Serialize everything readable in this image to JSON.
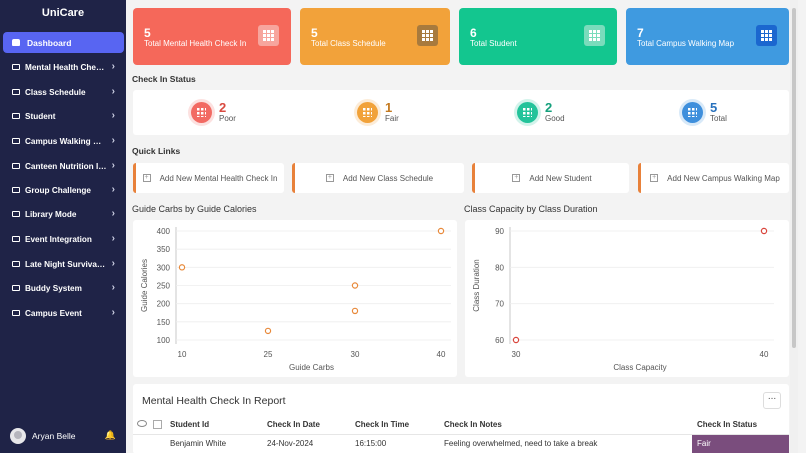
{
  "app": {
    "title": "UniCare"
  },
  "sidebar": {
    "active": "Dashboard",
    "items": [
      "Mental Health Check In",
      "Class Schedule",
      "Student",
      "Campus Walking Map",
      "Canteen Nutrition Info",
      "Group Challenge",
      "Library Mode",
      "Event Integration",
      "Late Night Survival Kit",
      "Buddy System",
      "Campus Event"
    ]
  },
  "user": {
    "name": "Aryan Belle"
  },
  "cards": [
    {
      "num": "5",
      "label": "Total Mental Health Check In",
      "color": "#f5685a",
      "sq": "#f7a59d"
    },
    {
      "num": "5",
      "label": "Total Class Schedule",
      "color": "#f2a23a",
      "sq": "#a87a3d"
    },
    {
      "num": "6",
      "label": "Total Student",
      "color": "#13c68f",
      "sq": "#7adcbc"
    },
    {
      "num": "7",
      "label": "Total Campus Walking Map",
      "color": "#3f9ae0",
      "sq": "#1b67cf"
    }
  ],
  "status": {
    "title": "Check In Status",
    "items": [
      {
        "value": "2",
        "label": "Poor",
        "color": "#f26a63",
        "text": "#d94a40"
      },
      {
        "value": "1",
        "label": "Fair",
        "color": "#f1a23a",
        "text": "#c47a20"
      },
      {
        "value": "2",
        "label": "Good",
        "color": "#23c39a",
        "text": "#14a07c"
      },
      {
        "value": "5",
        "label": "Total",
        "color": "#3e8fdc",
        "text": "#2771bd"
      }
    ]
  },
  "quick_links": {
    "title": "Quick Links",
    "items": [
      "Add New Mental Health Check In",
      "Add New Class Schedule",
      "Add New Student",
      "Add New Campus Walking Map"
    ]
  },
  "chart_data": [
    {
      "type": "scatter",
      "title": "Guide Carbs by Guide Calories",
      "xlabel": "Guide Carbs",
      "ylabel": "Guide Calories",
      "x_ticks": [
        10,
        25,
        30,
        40
      ],
      "y_ticks": [
        100,
        150,
        200,
        250,
        300,
        350,
        400
      ],
      "x": [
        10,
        25,
        30,
        30,
        40
      ],
      "y": [
        300,
        125,
        250,
        180,
        400
      ],
      "color": "#e8893a"
    },
    {
      "type": "scatter",
      "title": "Class Capacity by Class Duration",
      "xlabel": "Class Capacity",
      "ylabel": "Class Duration",
      "x_ticks": [
        30,
        40
      ],
      "y_ticks": [
        60,
        70,
        80,
        90
      ],
      "x": [
        30,
        40
      ],
      "y": [
        60,
        90
      ],
      "color": "#d9443b"
    }
  ],
  "report": {
    "title": "Mental Health Check In Report",
    "more": "...",
    "columns": [
      "Student Id",
      "Check In Date",
      "Check In Time",
      "Check In Notes",
      "Check In Status"
    ],
    "rows": [
      [
        "Benjamin White",
        "24-Nov-2024",
        "16:15:00",
        "Feeling overwhelmed, need to take a break",
        "Fair"
      ]
    ]
  }
}
